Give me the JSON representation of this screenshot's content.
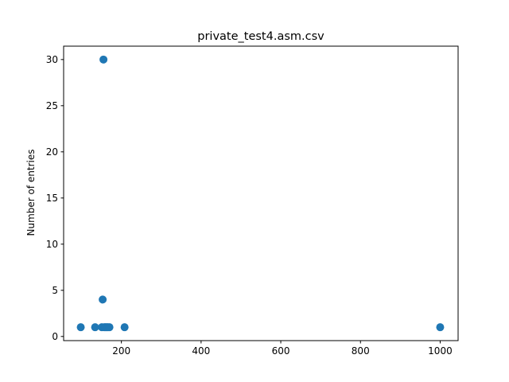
{
  "chart_data": {
    "type": "scatter",
    "title": "private_test4.asm.csv",
    "xlabel": "",
    "ylabel": "Number of entries",
    "xlim": [
      55,
      1045
    ],
    "ylim": [
      -0.45,
      31.45
    ],
    "xticks": [
      200,
      400,
      600,
      800,
      1000
    ],
    "yticks": [
      0,
      5,
      10,
      15,
      20,
      25,
      30
    ],
    "grid": false,
    "color": "#1f77b4",
    "points": [
      {
        "x": 98,
        "y": 1
      },
      {
        "x": 134,
        "y": 1
      },
      {
        "x": 151,
        "y": 1
      },
      {
        "x": 153,
        "y": 4
      },
      {
        "x": 155,
        "y": 30
      },
      {
        "x": 157,
        "y": 1
      },
      {
        "x": 160,
        "y": 1
      },
      {
        "x": 163,
        "y": 1
      },
      {
        "x": 166,
        "y": 1
      },
      {
        "x": 170,
        "y": 1
      },
      {
        "x": 208,
        "y": 1
      },
      {
        "x": 1000,
        "y": 1
      }
    ]
  }
}
